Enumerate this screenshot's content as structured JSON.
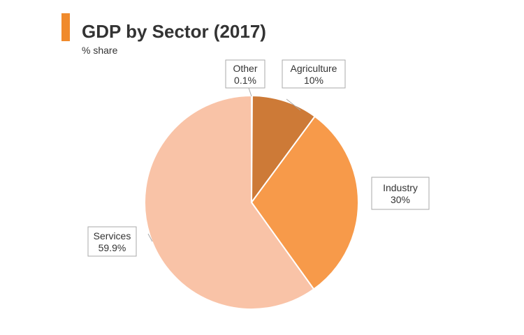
{
  "header": {
    "title": "GDP by Sector (2017)",
    "subtitle": "% share",
    "accent_color": "#f08a2c"
  },
  "chart_data": {
    "type": "pie",
    "title": "GDP by Sector (2017)",
    "subtitle": "% share",
    "slices": [
      {
        "label": "Other",
        "value": 0.1,
        "value_label": "0.1%",
        "color": "#e8b08a"
      },
      {
        "label": "Agriculture",
        "value": 10,
        "value_label": "10%",
        "color": "#cd7a37"
      },
      {
        "label": "Industry",
        "value": 30,
        "value_label": "30%",
        "color": "#f79a4a"
      },
      {
        "label": "Services",
        "value": 59.9,
        "value_label": "59.9%",
        "color": "#f9c3a7"
      }
    ],
    "start_angle": "12 o'clock",
    "direction": "clockwise",
    "legend": "none",
    "data_labels": "callouts"
  }
}
